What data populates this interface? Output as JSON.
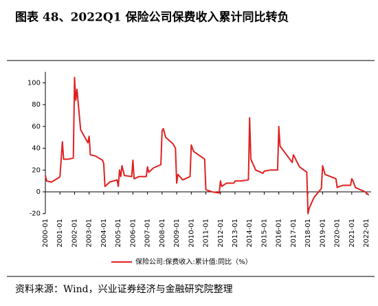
{
  "chart_data": {
    "type": "line",
    "title": "图表 48、2022Q1 保险公司保费收入累计同比转负",
    "source": "资料来源：Wind，兴业证券经济与金融研究院整理",
    "x": [
      "2000-01",
      "2000-02",
      "2000-06",
      "2000-12",
      "2001-01",
      "2001-03",
      "2001-04",
      "2001-08",
      "2001-12",
      "2002-01",
      "2002-02",
      "2002-03",
      "2002-06",
      "2002-12",
      "2003-01",
      "2003-02",
      "2003-06",
      "2003-12",
      "2004-01",
      "2004-02",
      "2004-06",
      "2004-12",
      "2005-01",
      "2005-02",
      "2005-03",
      "2005-04",
      "2005-06",
      "2005-12",
      "2006-01",
      "2006-02",
      "2006-06",
      "2006-12",
      "2007-01",
      "2007-02",
      "2007-06",
      "2007-12",
      "2008-01",
      "2008-02",
      "2008-04",
      "2008-10",
      "2008-12",
      "2009-01",
      "2009-02",
      "2009-06",
      "2009-12",
      "2010-01",
      "2010-03",
      "2010-12",
      "2011-01",
      "2011-06",
      "2011-12",
      "2012-01",
      "2012-02",
      "2012-06",
      "2012-12",
      "2013-01",
      "2013-06",
      "2013-12",
      "2014-01",
      "2014-02",
      "2014-06",
      "2014-12",
      "2015-01",
      "2015-06",
      "2015-12",
      "2016-01",
      "2016-02",
      "2016-06",
      "2016-12",
      "2017-01",
      "2017-06",
      "2017-12",
      "2018-01",
      "2018-02",
      "2018-06",
      "2018-12",
      "2019-01",
      "2019-03",
      "2019-12",
      "2020-01",
      "2020-03",
      "2020-06",
      "2020-12",
      "2021-01",
      "2021-02",
      "2021-04",
      "2021-12",
      "2022-01",
      "2022-02",
      "2022-03"
    ],
    "series": [
      {
        "name": "保险公司:保费收入:累计值:同比（%）",
        "color": "#e02020",
        "values": [
          15,
          10,
          9,
          13,
          14,
          46,
          30,
          30,
          31,
          105,
          84,
          94,
          57,
          45,
          51,
          34,
          33,
          29,
          26,
          5,
          9,
          11,
          5,
          20,
          14,
          24,
          15,
          14,
          29,
          12,
          14,
          14,
          23,
          18,
          22,
          25,
          56,
          58,
          50,
          44,
          40,
          8,
          16,
          11,
          14,
          43,
          37,
          30,
          2,
          0,
          -1,
          10,
          5,
          8,
          8,
          10,
          10,
          11,
          68,
          30,
          20,
          17,
          19,
          20,
          20,
          60,
          42,
          36,
          27,
          34,
          23,
          18,
          -20,
          -15,
          -5,
          3,
          24,
          16,
          12,
          4,
          5,
          6,
          6,
          12,
          10,
          4,
          0,
          -1,
          -2,
          -3
        ]
      }
    ],
    "xticks": [
      "2000-01",
      "2001-01",
      "2002-01",
      "2003-01",
      "2004-01",
      "2005-01",
      "2006-01",
      "2007-01",
      "2008-01",
      "2009-01",
      "2010-01",
      "2011-01",
      "2012-01",
      "2013-01",
      "2014-01",
      "2015-01",
      "2016-01",
      "2017-01",
      "2018-01",
      "2019-01",
      "2020-01",
      "2021-01",
      "2022-01"
    ],
    "ylim": [
      -20,
      110
    ],
    "yticks": [
      -20,
      0,
      20,
      40,
      60,
      80,
      100
    ],
    "grid": false,
    "legend": "bottom"
  }
}
